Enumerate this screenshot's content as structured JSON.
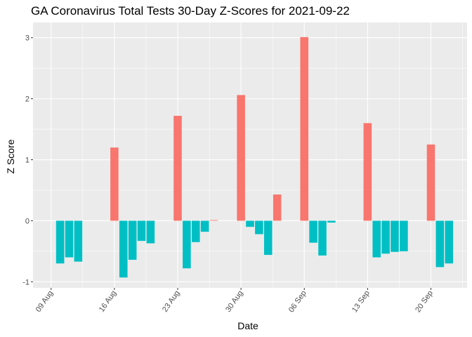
{
  "chart_data": {
    "type": "bar",
    "title": "GA Coronavirus Total Tests 30-Day Z-Scores for 2021-09-22",
    "xlabel": "Date",
    "ylabel": "Z Score",
    "x_axis": {
      "type": "date",
      "range": [
        "2021-08-07",
        "2021-09-24"
      ],
      "ticks": [
        {
          "date": "2021-08-09",
          "label": "09 Aug"
        },
        {
          "date": "2021-08-16",
          "label": "16 Aug"
        },
        {
          "date": "2021-08-23",
          "label": "23 Aug"
        },
        {
          "date": "2021-08-30",
          "label": "30 Aug"
        },
        {
          "date": "2021-09-06",
          "label": "06 Sep"
        },
        {
          "date": "2021-09-13",
          "label": "13 Sep"
        },
        {
          "date": "2021-09-20",
          "label": "20 Sep"
        }
      ]
    },
    "y_axis": {
      "range": [
        -1.1,
        3.25
      ],
      "ticks": [
        -1,
        0,
        1,
        2,
        3
      ]
    },
    "grid": true,
    "legend": "none",
    "colors": {
      "positive": "#F8766D",
      "negative": "#00BFC4",
      "panel": "#EBEBEB",
      "grid": "#FFFFFF"
    },
    "data": [
      {
        "date": "2021-08-10",
        "value": -0.7
      },
      {
        "date": "2021-08-11",
        "value": -0.6
      },
      {
        "date": "2021-08-12",
        "value": -0.67
      },
      {
        "date": "2021-08-16",
        "value": 1.2
      },
      {
        "date": "2021-08-17",
        "value": -0.93
      },
      {
        "date": "2021-08-18",
        "value": -0.64
      },
      {
        "date": "2021-08-19",
        "value": -0.33
      },
      {
        "date": "2021-08-20",
        "value": -0.37
      },
      {
        "date": "2021-08-23",
        "value": 1.72
      },
      {
        "date": "2021-08-24",
        "value": -0.78
      },
      {
        "date": "2021-08-25",
        "value": -0.35
      },
      {
        "date": "2021-08-26",
        "value": -0.18
      },
      {
        "date": "2021-08-27",
        "value": 0.01
      },
      {
        "date": "2021-08-30",
        "value": 2.06
      },
      {
        "date": "2021-08-31",
        "value": -0.1
      },
      {
        "date": "2021-09-01",
        "value": -0.22
      },
      {
        "date": "2021-09-02",
        "value": -0.56
      },
      {
        "date": "2021-09-03",
        "value": 0.43
      },
      {
        "date": "2021-09-06",
        "value": 3.01
      },
      {
        "date": "2021-09-07",
        "value": -0.36
      },
      {
        "date": "2021-09-08",
        "value": -0.57
      },
      {
        "date": "2021-09-09",
        "value": -0.03
      },
      {
        "date": "2021-09-13",
        "value": 1.6
      },
      {
        "date": "2021-09-14",
        "value": -0.6
      },
      {
        "date": "2021-09-15",
        "value": -0.54
      },
      {
        "date": "2021-09-16",
        "value": -0.51
      },
      {
        "date": "2021-09-17",
        "value": -0.5
      },
      {
        "date": "2021-09-20",
        "value": 1.25
      },
      {
        "date": "2021-09-21",
        "value": -0.76
      },
      {
        "date": "2021-09-22",
        "value": -0.7
      }
    ]
  }
}
